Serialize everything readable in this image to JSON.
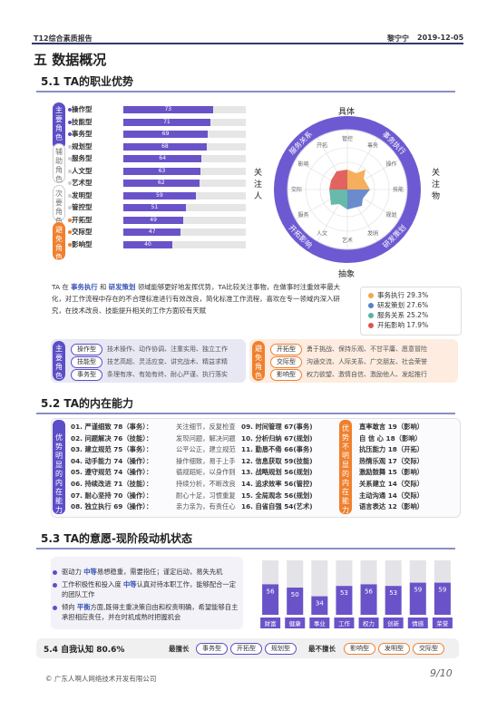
{
  "header": {
    "title": "T12综合素质报告",
    "name": "黎宁宁",
    "date": "2019-12-05"
  },
  "section_title": "五 数据概况",
  "s51": {
    "title": "5.1 TA的职业优势",
    "groups": [
      {
        "label": "主要角色",
        "color": "#5b4ec7"
      },
      {
        "label": "辅助角色",
        "color": "#ffffff"
      },
      {
        "label": "次要角色",
        "color": "#ffffff"
      },
      {
        "label": "避免角色",
        "color": "#f0802e"
      }
    ],
    "bars": [
      {
        "label": "操作型",
        "value": 73,
        "dot": "#5b4ec7"
      },
      {
        "label": "技能型",
        "value": 71,
        "dot": "#5b4ec7"
      },
      {
        "label": "事务型",
        "value": 69,
        "dot": "#5b4ec7"
      },
      {
        "label": "规划型",
        "value": 68,
        "dot": "#cccccc"
      },
      {
        "label": "服务型",
        "value": 64,
        "dot": "#cccccc"
      },
      {
        "label": "人文型",
        "value": 63,
        "dot": "#cccccc"
      },
      {
        "label": "艺术型",
        "value": 62,
        "dot": "#cccccc"
      },
      {
        "label": "发明型",
        "value": 59,
        "dot": "#cccccc"
      },
      {
        "label": "管控型",
        "value": 51,
        "dot": "#cccccc"
      },
      {
        "label": "开拓型",
        "value": 49,
        "dot": "#f0802e"
      },
      {
        "label": "交际型",
        "value": 47,
        "dot": "#f0802e"
      },
      {
        "label": "影响型",
        "value": 40,
        "dot": "#f0802e"
      }
    ],
    "wheel": {
      "top": "具体",
      "bottom": "抽象",
      "left": "关注人",
      "right": "关注物",
      "ring": [
        "事务执行",
        "研发策划",
        "开拓影响",
        "服务关系"
      ],
      "inner": [
        "管控",
        "事务",
        "操作",
        "技能",
        "规划",
        "发明",
        "艺术",
        "人文",
        "服务",
        "交际",
        "影响",
        "开拓"
      ]
    },
    "paragraph": {
      "p1": "TA 在 ",
      "hl1": "事务执行",
      "p2": " 和 ",
      "hl2": "研发策划",
      "p3": " 领域能够更好地发挥优势，TA比较关注事物，在做事时注重效率最大化，对工作流程中存在的不合理标准进行有效改良，简化标准工作流程，喜欢在专一领域内深入研究，在技术改良、技能提升相关的工作方面较有天赋"
    },
    "legend": [
      {
        "label": "事务执行 29.3%",
        "color": "#f5a64a"
      },
      {
        "label": "研发策划 27.6%",
        "color": "#5b7fc7"
      },
      {
        "label": "服务关系 25.2%",
        "color": "#56b3a3"
      },
      {
        "label": "开拓影响 17.9%",
        "color": "#e0524f"
      }
    ],
    "main_role": {
      "label": "主要角色",
      "items": [
        {
          "tag": "操作型",
          "desc": "技术操作、动作协调、注重实用、独立工作"
        },
        {
          "tag": "技能型",
          "desc": "技艺高超、灵活应变、讲究战术、精益求精"
        },
        {
          "tag": "事务型",
          "desc": "条理有序、有始有终、耐心严谨、执行落实"
        }
      ]
    },
    "avoid_role": {
      "label": "避免角色",
      "items": [
        {
          "tag": "开拓型",
          "desc": "勇于挑战、保持乐观、不甘平庸、愿意冒险"
        },
        {
          "tag": "交际型",
          "desc": "沟通交流、人际关系、广交朋友、社会荣誉"
        },
        {
          "tag": "影响型",
          "desc": "权力欲望、激情自信、激励他人、发起推行"
        }
      ]
    }
  },
  "s52": {
    "title": "5.2 TA的内在能力",
    "left_label": "优势明显的内在能力",
    "right_label": "优势不明显的内在能力",
    "left_items": [
      {
        "name": "01. 严谨细致 78（事务）：",
        "desc": "关注细节，反复检查"
      },
      {
        "name": "02. 问题解决 76（技能）：",
        "desc": "发现问题，解决问题"
      },
      {
        "name": "03. 建立规范 75（事务）：",
        "desc": "公平公正，建立规范"
      },
      {
        "name": "04. 动手能力 74（操作）：",
        "desc": "操作细致，易于上手"
      },
      {
        "name": "05. 遵守规范 74（操作）：",
        "desc": "循规蹈矩，以身作则"
      },
      {
        "name": "06. 持续改进 71（技能）：",
        "desc": "持续分析，不断改良"
      },
      {
        "name": "07. 耐心坚持 70（操作）：",
        "desc": "耐心十足，习惯重复"
      },
      {
        "name": "08. 独立执行 69（操作）：",
        "desc": "亲力亲为，有责任心"
      }
    ],
    "mid_items": [
      "09. 时间管理 67(事务)",
      "10. 分析归纳 67(规划)",
      "11. 勤恳不倦 66(事务)",
      "12. 信息获取 59(技能)",
      "13. 战略规划 56(规划)",
      "14. 追求效率 56(管控)",
      "15. 全局观念 56(规划)",
      "16. 自省自强 54(艺术)"
    ],
    "right_items": [
      "直率敢言 19（影响）",
      "自 信 心 18（影响）",
      "抗压能力 18（开拓）",
      "热情乐观 17（交际）",
      "激励鼓舞 15（影响）",
      "关系建立 14（交际）",
      "主动沟通 14（交际）",
      "语言表达 12（影响）"
    ]
  },
  "s53": {
    "title": "5.3 TA的意愿-现阶段动机状态",
    "items": [
      {
        "pre": "驱动力 ",
        "hl": "中等",
        "post": "易想稳重，需要指任；谨定后动，易失先机"
      },
      {
        "pre": "工作积极性和投入度 ",
        "hl": "中等",
        "post": "认真对待本职工作，能够配合一定的团队工作"
      },
      {
        "pre": "倾向 ",
        "hl": "平衡",
        "post": "方面,既得主重决策自由和权责明确，希望能够自主承担相应责任，并在时机成熟时把握机会"
      }
    ],
    "chart_data": {
      "type": "bar",
      "categories": [
        "财富",
        "健康",
        "事业",
        "工作",
        "权力",
        "创新",
        "情感",
        "荣誉"
      ],
      "values": [
        56,
        50,
        34,
        53,
        56,
        53,
        59,
        59
      ],
      "ylim": [
        0,
        100
      ]
    }
  },
  "s54": {
    "title": "5.4 自我认知 80.6%",
    "best_label": "最擅长",
    "best": [
      "事务型",
      "开拓型",
      "规划型"
    ],
    "worst_label": "最不擅长",
    "worst": [
      "影响型",
      "发明型",
      "交际型"
    ]
  },
  "footer": {
    "copyright": "© 广东人啊人网络技术开发有限公司",
    "page": "9/10"
  }
}
